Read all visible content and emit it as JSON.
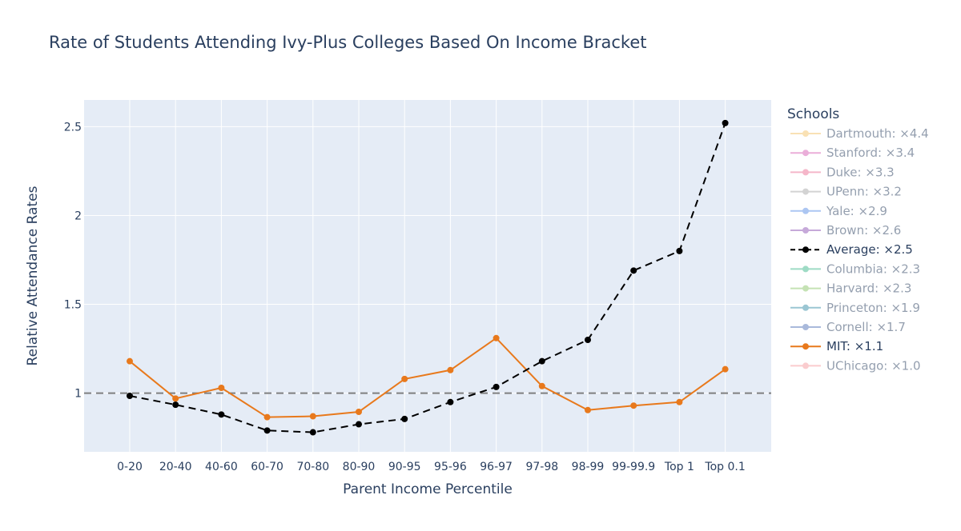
{
  "chart_data": {
    "type": "line",
    "title": "Rate of Students Attending Ivy-Plus Colleges Based On Income Bracket",
    "xlabel": "Parent Income Percentile",
    "ylabel": "Relative Attendance Rates",
    "categories": [
      "0-20",
      "20-40",
      "40-60",
      "60-70",
      "70-80",
      "80-90",
      "90-95",
      "95-96",
      "96-97",
      "97-98",
      "98-99",
      "99-99.9",
      "Top 1",
      "Top 0.1"
    ],
    "ylim": [
      0.67,
      2.65
    ],
    "yticks": [
      1,
      1.5,
      2,
      2.5
    ],
    "ytick_labels": [
      "1",
      "1.5",
      "2",
      "2.5"
    ],
    "reference_line": {
      "y": 1,
      "style": "dashed",
      "color": "#7f7f7f"
    },
    "grid": true,
    "plot_background": "#e5ecf6",
    "legend": {
      "title": "Schools",
      "position": "right",
      "entries": [
        {
          "label": "Dartmouth: ×4.4",
          "color": "#f5c46b",
          "visible": false
        },
        {
          "label": "Stanford: ×3.4",
          "color": "#d65fb4",
          "visible": false
        },
        {
          "label": "Duke: ×3.3",
          "color": "#ec6f95",
          "visible": false
        },
        {
          "label": "UPenn: ×3.2",
          "color": "#a8a8a8",
          "visible": false
        },
        {
          "label": "Yale: ×2.9",
          "color": "#5b8fe6",
          "visible": false
        },
        {
          "label": "Brown: ×2.6",
          "color": "#8e55b5",
          "visible": false
        },
        {
          "label": "Average: ×2.5",
          "color": "#000000",
          "visible": true,
          "dash": true
        },
        {
          "label": "Columbia: ×2.3",
          "color": "#3fb98c",
          "visible": false
        },
        {
          "label": "Harvard: ×2.3",
          "color": "#8cc66c",
          "visible": false
        },
        {
          "label": "Princeton: ×1.9",
          "color": "#3a8ea8",
          "visible": false
        },
        {
          "label": "Cornell: ×1.7",
          "color": "#5576b8",
          "visible": false
        },
        {
          "label": "MIT: ×1.1",
          "color": "#e8791c",
          "visible": true,
          "dash": false
        },
        {
          "label": "UChicago: ×1.0",
          "color": "#f79a9f",
          "visible": false
        }
      ]
    },
    "series": [
      {
        "name": "Average: ×2.5",
        "color": "#000000",
        "dash": true,
        "values": [
          0.985,
          0.935,
          0.88,
          0.79,
          0.78,
          0.825,
          0.855,
          0.95,
          1.035,
          1.18,
          1.3,
          1.69,
          1.8,
          2.52
        ]
      },
      {
        "name": "MIT: ×1.1",
        "color": "#e8791c",
        "dash": false,
        "values": [
          1.18,
          0.97,
          1.03,
          0.865,
          0.87,
          0.895,
          1.08,
          1.13,
          1.31,
          1.04,
          0.905,
          0.93,
          0.95,
          1.135
        ]
      }
    ]
  }
}
